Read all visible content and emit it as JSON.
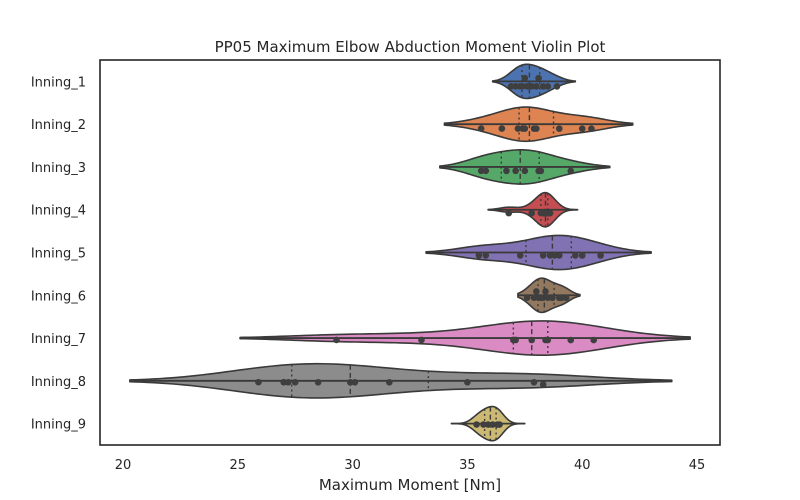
{
  "chart_data": {
    "type": "violin",
    "title": "PP05 Maximum Elbow Abduction Moment Violin Plot",
    "xlabel": "Maximum Moment [Nm]",
    "ylabel": "",
    "xlim": [
      19,
      46
    ],
    "xticks": [
      20,
      25,
      30,
      35,
      40,
      45
    ],
    "orientation": "horizontal",
    "inner": "stick",
    "grid": false,
    "legend": "none",
    "colors": [
      "#4c72b0",
      "#dd8452",
      "#55a868",
      "#c44e52",
      "#8172b3",
      "#937860",
      "#da8bc3",
      "#8c8c8c",
      "#ccb974"
    ],
    "categories": [
      "Inning_1",
      "Inning_2",
      "Inning_3",
      "Inning_4",
      "Inning_5",
      "Inning_6",
      "Inning_7",
      "Inning_8",
      "Inning_9"
    ],
    "series": [
      {
        "name": "Inning_1",
        "extent": [
          36.1,
          39.7
        ],
        "values": [
          36.9,
          37.1,
          37.3,
          37.4,
          37.6,
          37.8,
          38.0,
          38.3,
          38.5,
          38.9,
          37.5,
          38.1
        ]
      },
      {
        "name": "Inning_2",
        "extent": [
          34.0,
          42.2
        ],
        "values": [
          35.6,
          36.5,
          37.2,
          37.4,
          37.5,
          37.9,
          38.0,
          39.0,
          40.0,
          40.4
        ]
      },
      {
        "name": "Inning_3",
        "extent": [
          33.8,
          41.2
        ],
        "values": [
          35.6,
          35.8,
          36.7,
          37.1,
          37.5,
          38.1,
          38.2,
          39.5
        ]
      },
      {
        "name": "Inning_4",
        "extent": [
          35.9,
          39.8
        ],
        "values": [
          36.8,
          37.8,
          38.2,
          38.4,
          38.5,
          38.5,
          38.6,
          38.3,
          38.4
        ]
      },
      {
        "name": "Inning_5",
        "extent": [
          33.2,
          43.0
        ],
        "values": [
          35.5,
          35.8,
          37.3,
          38.3,
          38.6,
          38.8,
          39.0,
          39.7,
          40.0,
          40.8
        ]
      },
      {
        "name": "Inning_6",
        "extent": [
          37.2,
          39.9
        ],
        "values": [
          37.6,
          37.9,
          38.1,
          38.2,
          38.3,
          38.5,
          38.7,
          39.0,
          39.1,
          39.3,
          38.4,
          38.0
        ]
      },
      {
        "name": "Inning_7",
        "extent": [
          25.1,
          44.7
        ],
        "values": [
          29.3,
          33.0,
          37.0,
          37.1,
          37.8,
          38.4,
          38.5,
          39.5,
          40.5
        ]
      },
      {
        "name": "Inning_8",
        "extent": [
          20.3,
          43.9
        ],
        "values": [
          25.9,
          27.0,
          27.2,
          27.5,
          28.5,
          29.9,
          30.1,
          31.6,
          35.0,
          37.9,
          38.3
        ]
      },
      {
        "name": "Inning_9",
        "extent": [
          34.3,
          37.5
        ],
        "values": [
          35.4,
          35.7,
          35.9,
          36.1,
          36.3,
          36.4
        ]
      }
    ]
  }
}
